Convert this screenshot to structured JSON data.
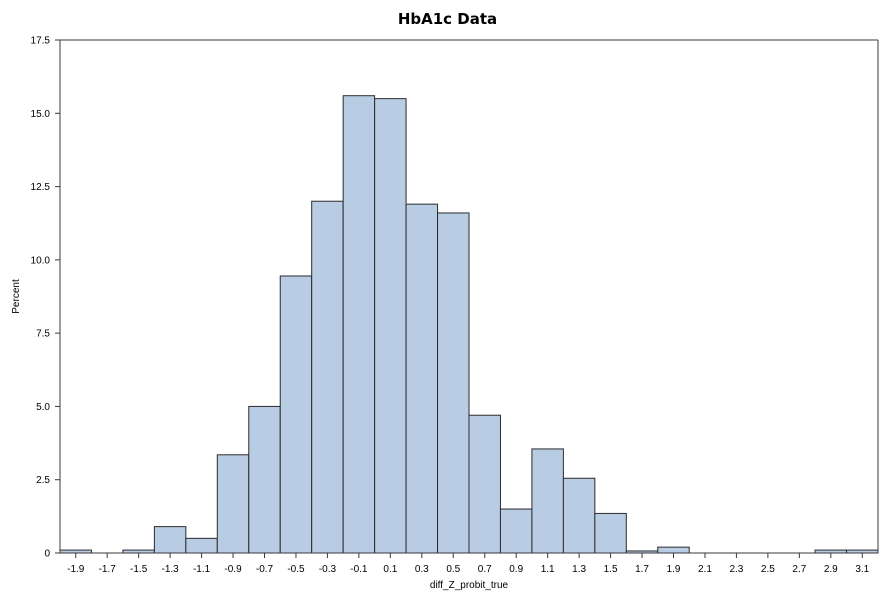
{
  "chart_data": {
    "type": "bar",
    "title": "HbA1c Data",
    "xlabel": "diff_Z_probit_true",
    "ylabel": "Percent",
    "xlim": [
      -2.0,
      3.2
    ],
    "ylim": [
      0,
      17.5
    ],
    "bin_width": 0.2,
    "bin_starts": [
      -2.0,
      -1.8,
      -1.6,
      -1.4,
      -1.2,
      -1.0,
      -0.8,
      -0.6,
      -0.4,
      -0.2,
      0.0,
      0.2,
      0.4,
      0.6,
      0.8,
      1.0,
      1.2,
      1.4,
      1.6,
      1.8,
      2.0,
      2.2,
      2.4,
      2.6,
      2.8,
      3.0
    ],
    "values": [
      0.1,
      0.0,
      0.1,
      0.9,
      0.5,
      3.35,
      5.0,
      9.45,
      12.0,
      15.6,
      15.5,
      11.9,
      11.6,
      4.7,
      1.5,
      3.55,
      2.55,
      1.35,
      0.07,
      0.2,
      0.0,
      0.0,
      0.0,
      0.0,
      0.1,
      0.1
    ],
    "x_ticks": [
      "-1.9",
      "-1.7",
      "-1.5",
      "-1.3",
      "-1.1",
      "-0.9",
      "-0.7",
      "-0.5",
      "-0.3",
      "-0.1",
      "0.1",
      "0.3",
      "0.5",
      "0.7",
      "0.9",
      "1.1",
      "1.3",
      "1.5",
      "1.7",
      "1.9",
      "2.1",
      "2.3",
      "2.5",
      "2.7",
      "2.9",
      "3.1"
    ],
    "y_ticks": [
      "0",
      "2.5",
      "5.0",
      "7.5",
      "10.0",
      "12.5",
      "15.0",
      "17.5"
    ],
    "y_tick_values": [
      0,
      2.5,
      5.0,
      7.5,
      10.0,
      12.5,
      15.0,
      17.5
    ],
    "grid": false,
    "legend": "none",
    "bar_fill": "#b8cce4",
    "bar_stroke": "#2b2b2b",
    "axis_color": "#3a3a3a"
  }
}
